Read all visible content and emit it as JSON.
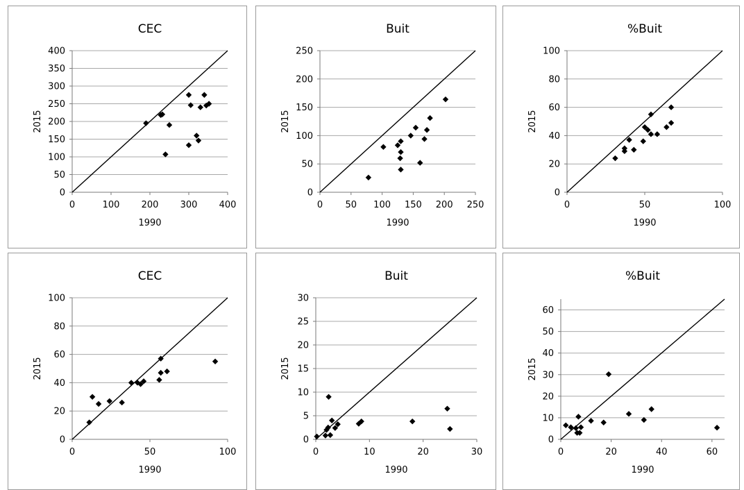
{
  "chart_data": [
    {
      "type": "scatter",
      "title": "CEC",
      "xlabel": "1990",
      "ylabel": "2015",
      "xlim": [
        0,
        400
      ],
      "ylim": [
        0,
        400
      ],
      "xticks": [
        0,
        100,
        200,
        300,
        400
      ],
      "yticks": [
        0,
        50,
        100,
        150,
        200,
        250,
        300,
        350,
        400
      ],
      "reference_line": "y = x",
      "points": [
        [
          190,
          195
        ],
        [
          228,
          218
        ],
        [
          232,
          220
        ],
        [
          250,
          190
        ],
        [
          240,
          107
        ],
        [
          300,
          275
        ],
        [
          305,
          246
        ],
        [
          340,
          275
        ],
        [
          345,
          245
        ],
        [
          352,
          250
        ],
        [
          330,
          240
        ],
        [
          320,
          160
        ],
        [
          325,
          146
        ],
        [
          300,
          133
        ]
      ]
    },
    {
      "type": "scatter",
      "title": "Buit",
      "xlabel": "1990",
      "ylabel": "2015",
      "xlim": [
        0,
        250
      ],
      "ylim": [
        0,
        250
      ],
      "xticks": [
        0,
        50,
        100,
        150,
        200,
        250
      ],
      "yticks": [
        0,
        50,
        100,
        150,
        200,
        250
      ],
      "reference_line": "y = x",
      "points": [
        [
          78,
          26
        ],
        [
          102,
          80
        ],
        [
          125,
          83
        ],
        [
          130,
          90
        ],
        [
          130,
          71
        ],
        [
          129,
          60
        ],
        [
          130,
          40
        ],
        [
          146,
          100
        ],
        [
          154,
          114
        ],
        [
          161,
          52
        ],
        [
          168,
          94
        ],
        [
          172,
          110
        ],
        [
          177,
          131
        ],
        [
          202,
          164
        ]
      ]
    },
    {
      "type": "scatter",
      "title": "%Buit",
      "xlabel": "1990",
      "ylabel": "2015",
      "xlim": [
        0,
        100
      ],
      "ylim": [
        0,
        100
      ],
      "xticks": [
        0,
        50,
        100
      ],
      "yticks": [
        0,
        20,
        40,
        60,
        80,
        100
      ],
      "reference_line": "y = x",
      "points": [
        [
          31,
          24
        ],
        [
          37,
          29
        ],
        [
          37,
          31
        ],
        [
          40,
          37
        ],
        [
          43,
          30
        ],
        [
          49,
          36
        ],
        [
          50,
          46
        ],
        [
          52,
          44
        ],
        [
          54,
          55
        ],
        [
          54,
          41
        ],
        [
          58,
          41
        ],
        [
          64,
          46
        ],
        [
          67,
          49
        ],
        [
          67,
          60
        ]
      ]
    },
    {
      "type": "scatter",
      "title": "CEC",
      "xlabel": "1990",
      "ylabel": "2015",
      "xlim": [
        0,
        100
      ],
      "ylim": [
        0,
        100
      ],
      "xticks": [
        0,
        50,
        100
      ],
      "yticks": [
        0,
        20,
        40,
        60,
        80,
        100
      ],
      "reference_line": "y = x",
      "points": [
        [
          11,
          12
        ],
        [
          13,
          30
        ],
        [
          17,
          25
        ],
        [
          24,
          27
        ],
        [
          32,
          26
        ],
        [
          38,
          40
        ],
        [
          42,
          40
        ],
        [
          44,
          39
        ],
        [
          46,
          41
        ],
        [
          56,
          42
        ],
        [
          57,
          47
        ],
        [
          57,
          57
        ],
        [
          61,
          48
        ],
        [
          92,
          55
        ]
      ]
    },
    {
      "type": "scatter",
      "title": "Buit",
      "xlabel": "1990",
      "ylabel": "2015",
      "xlim": [
        0,
        30
      ],
      "ylim": [
        0,
        30
      ],
      "xticks": [
        0,
        10,
        20,
        30
      ],
      "yticks": [
        0,
        5,
        10,
        15,
        20,
        25,
        30
      ],
      "reference_line": "y = x",
      "points": [
        [
          0.2,
          0.6
        ],
        [
          1.8,
          0.8
        ],
        [
          2,
          2
        ],
        [
          2.3,
          2.5
        ],
        [
          2.4,
          9
        ],
        [
          2.7,
          0.9
        ],
        [
          3,
          4
        ],
        [
          3.6,
          2.4
        ],
        [
          4.1,
          3.2
        ],
        [
          8,
          3.3
        ],
        [
          8.5,
          3.8
        ],
        [
          18,
          3.8
        ],
        [
          24.5,
          6.5
        ],
        [
          25,
          2.2
        ]
      ]
    },
    {
      "type": "scatter",
      "title": "%Buit",
      "xlabel": "1990",
      "ylabel": "2015",
      "xlim": [
        0,
        65
      ],
      "ylim": [
        0,
        65
      ],
      "xticks": [
        0,
        20,
        40,
        60
      ],
      "yticks": [
        0,
        10,
        20,
        30,
        40,
        50,
        60
      ],
      "reference_line": "y = x",
      "points": [
        [
          2,
          6.5
        ],
        [
          4,
          5.6
        ],
        [
          6,
          5.2
        ],
        [
          6.5,
          3
        ],
        [
          7,
          10.5
        ],
        [
          7.5,
          3
        ],
        [
          8,
          5.6
        ],
        [
          12,
          8.6
        ],
        [
          17,
          7.8
        ],
        [
          19,
          30.2
        ],
        [
          27,
          11.8
        ],
        [
          33,
          9
        ],
        [
          36,
          14
        ],
        [
          62,
          5.4
        ]
      ]
    }
  ]
}
